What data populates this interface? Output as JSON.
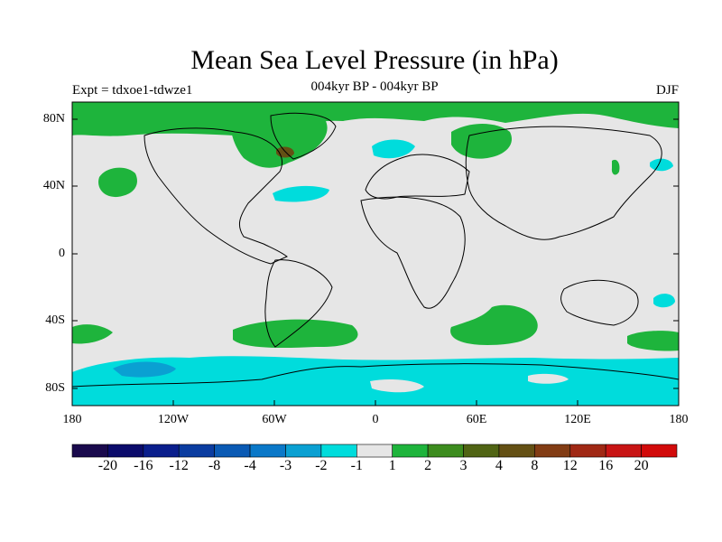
{
  "header": {
    "title": "Mean Sea Level Pressure (in hPa)",
    "left_label": "Expt = tdxoe1-tdwze1",
    "center_label": "004kyr BP - 004kyr BP",
    "right_label": "DJF"
  },
  "map": {
    "projection": "cylindrical-equidistant",
    "lon_range": [
      -180,
      180
    ],
    "lat_range": [
      -90,
      90
    ],
    "background_color": "#e6e6e6",
    "y_ticks": [
      "80N",
      "40N",
      "0",
      "40S",
      "80S"
    ],
    "x_ticks": [
      "180",
      "120W",
      "60W",
      "0",
      "60E",
      "120E",
      "180"
    ]
  },
  "colorbar": {
    "labels": [
      "-20",
      "-16",
      "-12",
      "-8",
      "-4",
      "-3",
      "-2",
      "-1",
      "1",
      "2",
      "3",
      "4",
      "8",
      "12",
      "16",
      "20"
    ],
    "colors": [
      "#1a0a4d",
      "#0b0b6b",
      "#0a1e8c",
      "#0a3ca0",
      "#0a5ab4",
      "#0a78c8",
      "#0aa0d2",
      "#00dcdc",
      "#e6e6e6",
      "#1eb43c",
      "#3c8c1e",
      "#506414",
      "#645014",
      "#823c14",
      "#a02814",
      "#c81414",
      "#d20a0a"
    ]
  }
}
